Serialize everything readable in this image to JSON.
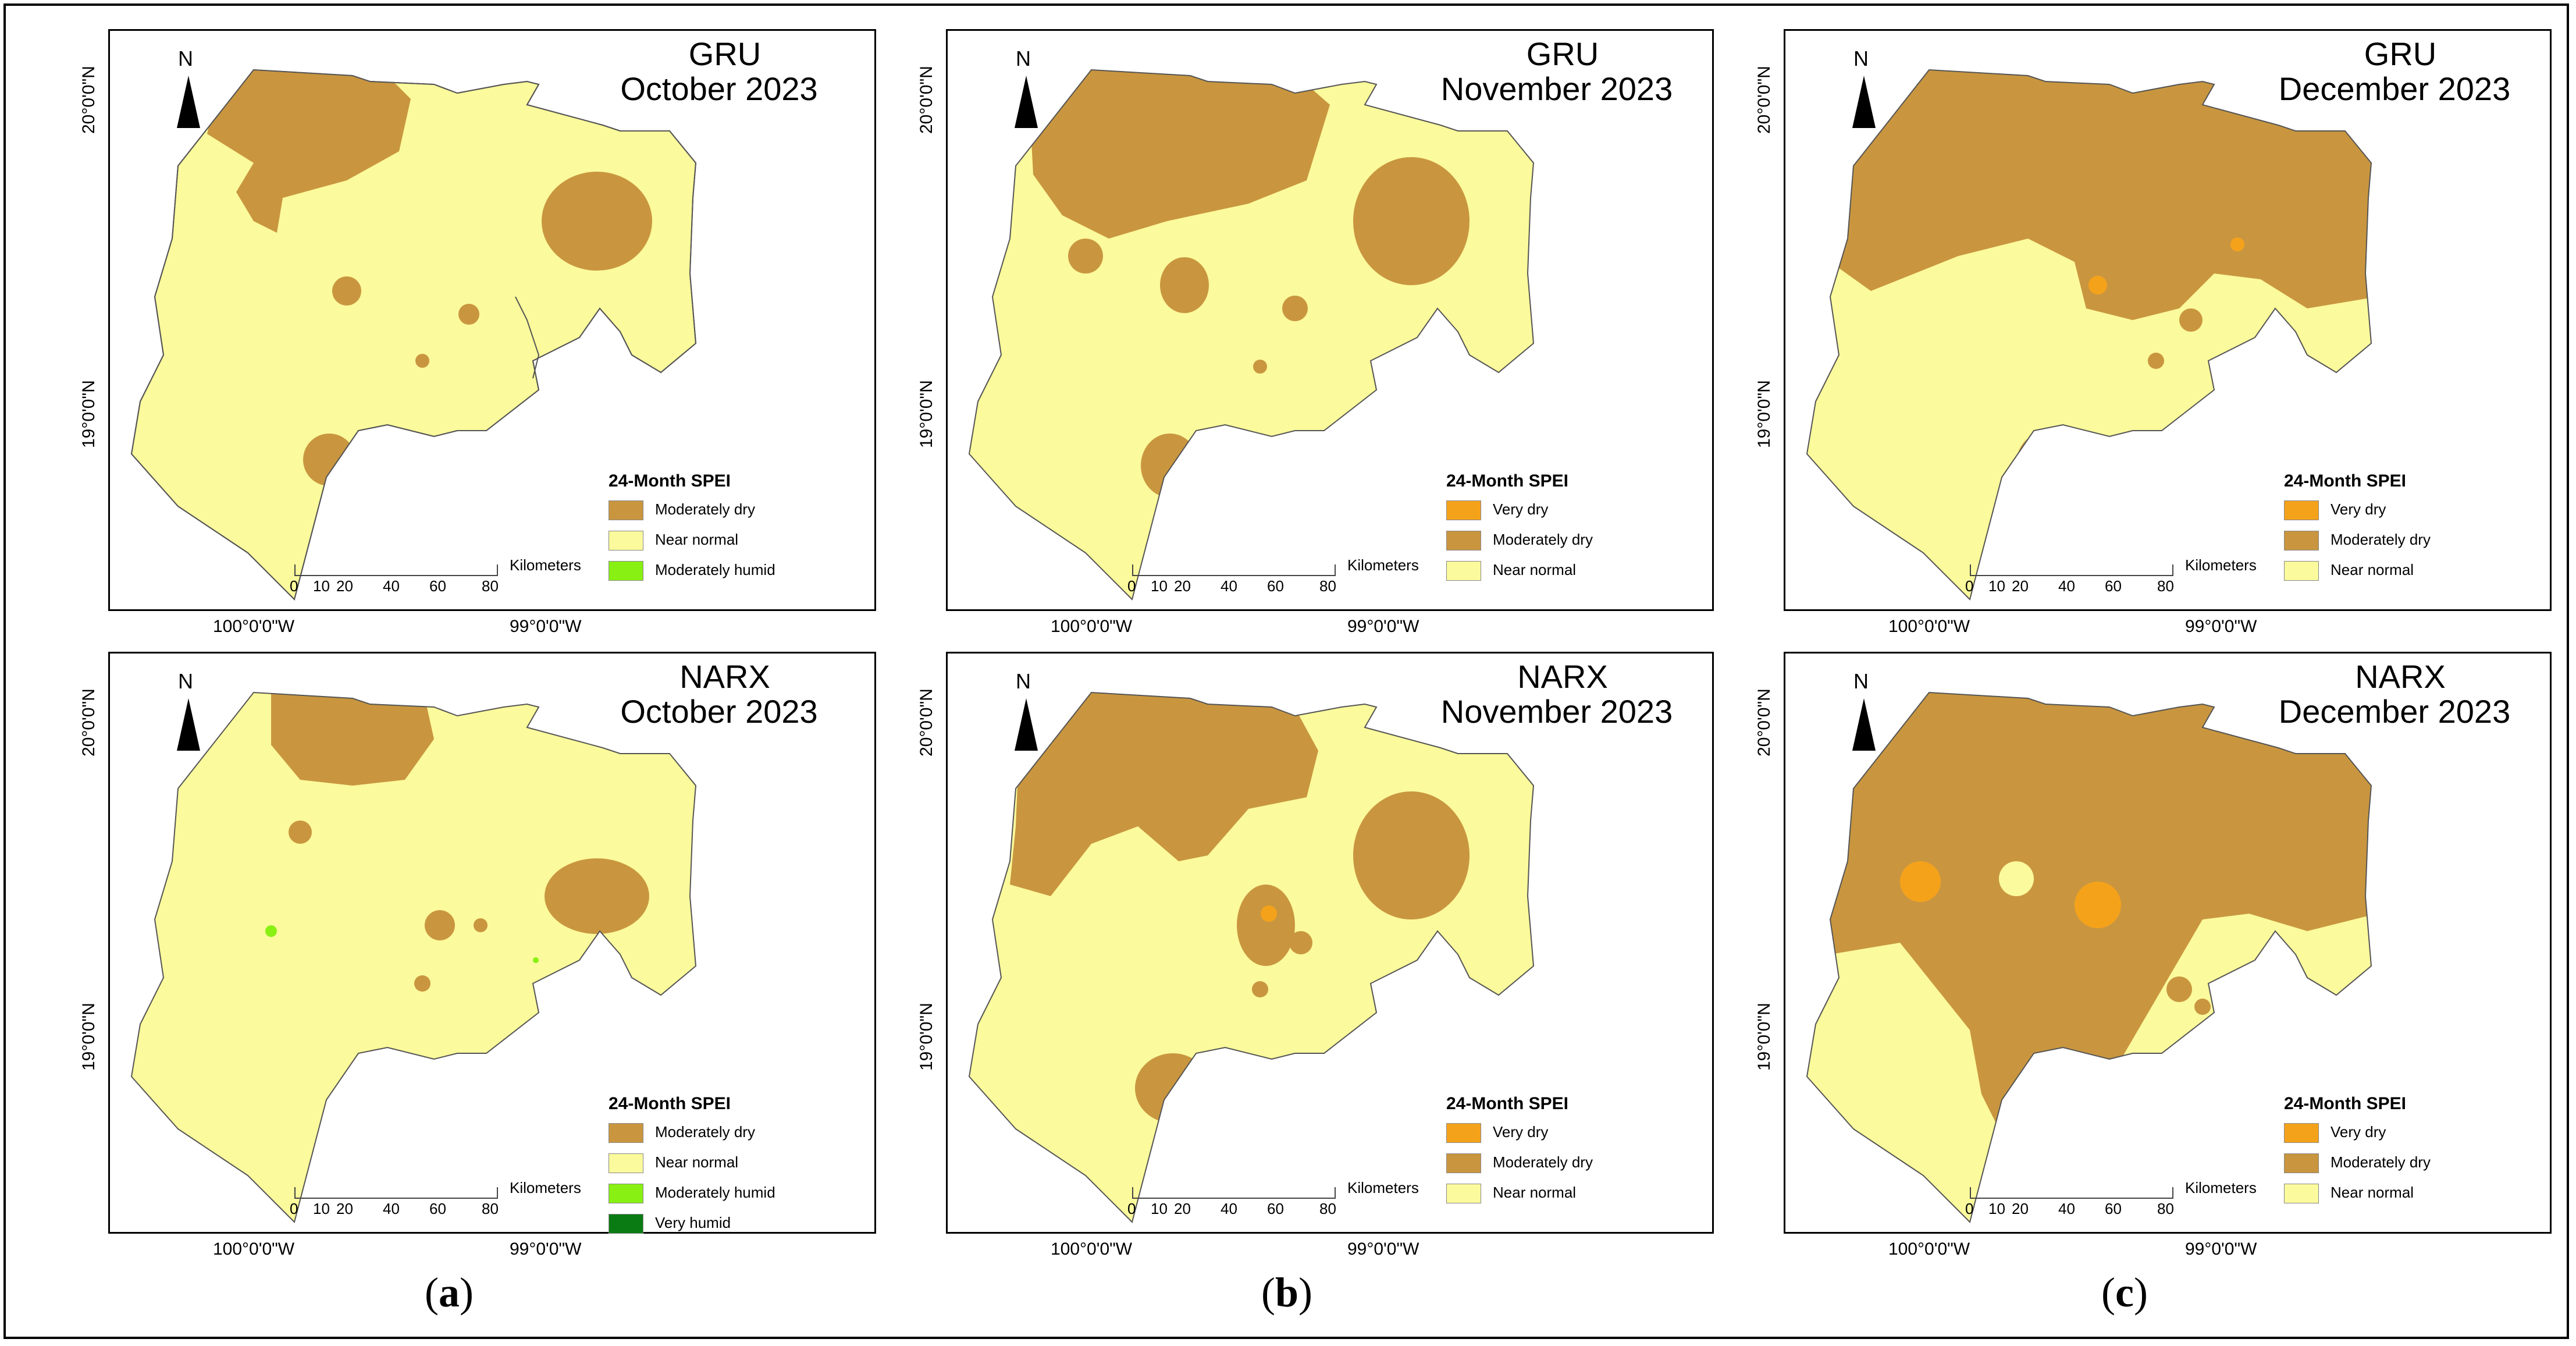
{
  "legend_title": "24-Month SPEI",
  "north_label": "N",
  "scale_unit": "Kilometers",
  "scale_ticks": [
    "0",
    "10",
    "20",
    "40",
    "60",
    "80"
  ],
  "lat_labels": [
    "20°0'0\"N",
    "19°0'0\"N"
  ],
  "lon_labels": [
    "100°0'0\"W",
    "99°0'0\"W"
  ],
  "colors": {
    "very_dry": "#f5a21b",
    "moderately_dry": "#c9963f",
    "near_normal": "#fbfa9c",
    "moderately_humid": "#88f012",
    "very_humid": "#0a7a12"
  },
  "panels": [
    {
      "model": "GRU",
      "period": "October 2023",
      "legend": [
        "Moderately dry",
        "Near normal",
        "Moderately humid"
      ]
    },
    {
      "model": "GRU",
      "period": "November 2023",
      "legend": [
        "Very dry",
        "Moderately dry",
        "Near normal"
      ]
    },
    {
      "model": "GRU",
      "period": "December 2023",
      "legend": [
        "Very dry",
        "Moderately dry",
        "Near normal"
      ]
    },
    {
      "model": "NARX",
      "period": "October 2023",
      "legend": [
        "Moderately dry",
        "Near normal",
        "Moderately humid",
        "Very humid"
      ]
    },
    {
      "model": "NARX",
      "period": "November 2023",
      "legend": [
        "Very dry",
        "Moderately dry",
        "Near normal"
      ]
    },
    {
      "model": "NARX",
      "period": "December 2023",
      "legend": [
        "Very dry",
        "Moderately dry",
        "Near normal"
      ]
    }
  ],
  "sub_labels": [
    "a",
    "b",
    "c"
  ]
}
